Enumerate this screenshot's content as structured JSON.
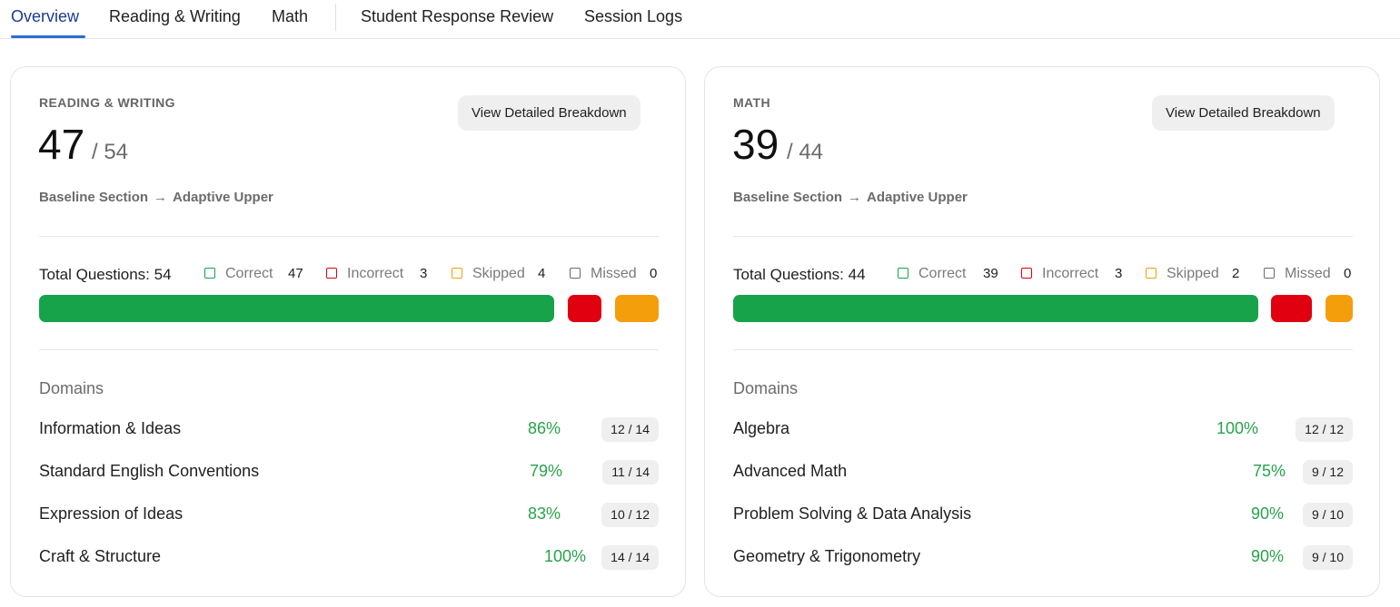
{
  "tabs": [
    {
      "label": "Overview",
      "active": true
    },
    {
      "label": "Reading & Writing"
    },
    {
      "label": "Math"
    },
    {
      "label": "Student Response Review"
    },
    {
      "label": "Session Logs"
    }
  ],
  "colors": {
    "correct": "#16a34a",
    "incorrect": "#e0000f",
    "skipped": "#f59e0b",
    "missed": "#6b6b6b"
  },
  "cards": [
    {
      "label": "READING & WRITING",
      "score": "47",
      "total": "/ 54",
      "button": "View Detailed Breakdown",
      "flow_from": "Baseline Section",
      "flow_arrow": "→",
      "flow_to": "Adaptive Upper",
      "total_questions": "Total Questions: 54",
      "legend": {
        "correct_label": "Correct",
        "correct_count": "47",
        "incorrect_label": "Incorrect",
        "incorrect_count": "3",
        "skipped_label": "Skipped",
        "skipped_count": "4",
        "missed_label": "Missed",
        "missed_count": "0"
      },
      "domains_title": "Domains",
      "domains": [
        {
          "name": "Information & Ideas",
          "pct": "86%",
          "count": "12 / 14"
        },
        {
          "name": "Standard English Conventions",
          "pct": "79%",
          "count": "11 / 14"
        },
        {
          "name": "Expression of Ideas",
          "pct": "83%",
          "count": "10 / 12"
        },
        {
          "name": "Craft & Structure",
          "pct": "100%",
          "count": "14 / 14"
        }
      ]
    },
    {
      "label": "MATH",
      "score": "39",
      "total": "/ 44",
      "button": "View Detailed Breakdown",
      "flow_from": "Baseline Section",
      "flow_arrow": "→",
      "flow_to": "Adaptive Upper",
      "total_questions": "Total Questions: 44",
      "legend": {
        "correct_label": "Correct",
        "correct_count": "39",
        "incorrect_label": "Incorrect",
        "incorrect_count": "3",
        "skipped_label": "Skipped",
        "skipped_count": "2",
        "missed_label": "Missed",
        "missed_count": "0"
      },
      "domains_title": "Domains",
      "domains": [
        {
          "name": "Algebra",
          "pct": "100%",
          "count": "12 / 12"
        },
        {
          "name": "Advanced Math",
          "pct": "75%",
          "count": "9 / 12"
        },
        {
          "name": "Problem Solving & Data Analysis",
          "pct": "90%",
          "count": "9 / 10"
        },
        {
          "name": "Geometry & Trigonometry",
          "pct": "90%",
          "count": "9 / 10"
        }
      ]
    }
  ]
}
